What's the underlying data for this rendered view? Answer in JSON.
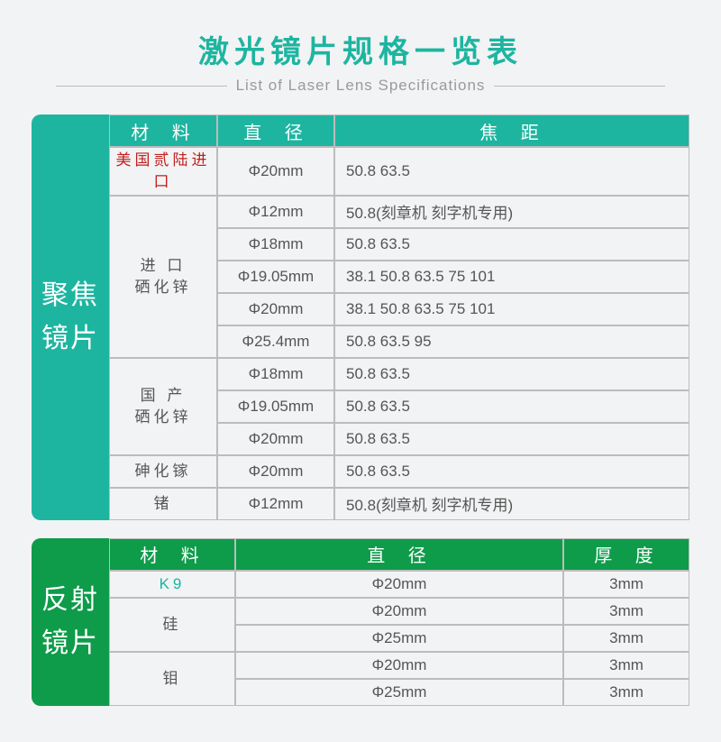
{
  "title": {
    "main": "激光镜片规格一览表",
    "sub": "List of Laser Lens Specifications"
  },
  "colors": {
    "teal": "#1db5a0",
    "green": "#0e9c4a",
    "bg": "#f2f3f4",
    "border": "#bcbcbc",
    "text": "#555555",
    "red": "#c02020"
  },
  "table1": {
    "side_label_a": "聚焦",
    "side_label_b": "镜片",
    "headers": {
      "material": "材 料",
      "diameter": "直 径",
      "focal": "焦 距"
    },
    "groups": [
      {
        "material": "美国贰陆进口",
        "material_style": "imp-red",
        "rows": [
          {
            "dia": "Φ20mm",
            "focal": "50.8  63.5"
          }
        ]
      },
      {
        "material": "进 口\n硒化锌",
        "material_style": "",
        "rows": [
          {
            "dia": "Φ12mm",
            "focal": "50.8(刻章机 刻字机专用)"
          },
          {
            "dia": "Φ18mm",
            "focal": "50.8  63.5"
          },
          {
            "dia": "Φ19.05mm",
            "focal": "38.1  50.8  63.5  75  101"
          },
          {
            "dia": "Φ20mm",
            "focal": "38.1  50.8  63.5  75  101"
          },
          {
            "dia": "Φ25.4mm",
            "focal": "50.8  63.5  95"
          }
        ]
      },
      {
        "material": "国 产\n硒化锌",
        "material_style": "",
        "rows": [
          {
            "dia": "Φ18mm",
            "focal": "50.8  63.5"
          },
          {
            "dia": "Φ19.05mm",
            "focal": "50.8  63.5"
          },
          {
            "dia": "Φ20mm",
            "focal": "50.8  63.5"
          }
        ]
      },
      {
        "material": "砷化镓",
        "material_style": "",
        "rows": [
          {
            "dia": "Φ20mm",
            "focal": "50.8  63.5"
          }
        ]
      },
      {
        "material": "锗",
        "material_style": "",
        "rows": [
          {
            "dia": "Φ12mm",
            "focal": "50.8(刻章机 刻字机专用)"
          }
        ]
      }
    ]
  },
  "table2": {
    "side_label_a": "反射",
    "side_label_b": "镜片",
    "headers": {
      "material": "材 料",
      "diameter": "直 径",
      "thickness": "厚 度"
    },
    "groups": [
      {
        "material": "K9",
        "material_style": "imp-teal",
        "rows": [
          {
            "dia": "Φ20mm",
            "thk": "3mm"
          }
        ]
      },
      {
        "material": "硅",
        "material_style": "",
        "rows": [
          {
            "dia": "Φ20mm",
            "thk": "3mm"
          },
          {
            "dia": "Φ25mm",
            "thk": "3mm"
          }
        ]
      },
      {
        "material": "钼",
        "material_style": "",
        "rows": [
          {
            "dia": "Φ20mm",
            "thk": "3mm"
          },
          {
            "dia": "Φ25mm",
            "thk": "3mm"
          }
        ]
      }
    ]
  }
}
